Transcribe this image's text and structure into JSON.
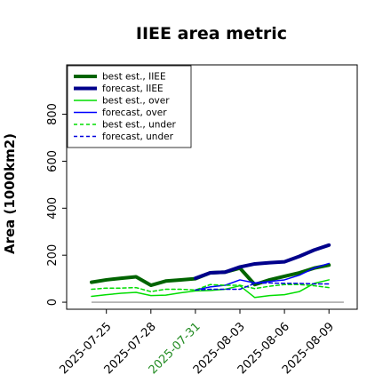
{
  "chart_data": {
    "type": "line",
    "title": "IIEE area metric",
    "xlabel": "",
    "ylabel": "Area (1000km2)",
    "ylim": [
      -30,
      1010
    ],
    "grid": false,
    "legend_position": "top-left",
    "x_tick_labels": [
      "2025-07-25",
      "2025-07-28",
      "2025-07-31",
      "2025-08-03",
      "2025-08-06",
      "2025-08-09"
    ],
    "highlighted_tick": "2025-07-31",
    "highlight_color": "#228b22",
    "y_ticks": [
      0,
      200,
      400,
      600,
      800
    ],
    "x_dates": [
      "2025-07-24",
      "2025-07-25",
      "2025-07-26",
      "2025-07-27",
      "2025-07-28",
      "2025-07-29",
      "2025-07-30",
      "2025-07-31",
      "2025-08-01",
      "2025-08-02",
      "2025-08-03",
      "2025-08-04",
      "2025-08-05",
      "2025-08-06",
      "2025-08-07",
      "2025-08-08",
      "2025-08-09",
      "2025-08-10"
    ],
    "series": [
      {
        "name": "best est., IIEE",
        "color": "#006400",
        "dash": "solid",
        "width": 4,
        "values": [
          85,
          95,
          102,
          108,
          72,
          90,
          95,
          100,
          125,
          128,
          145,
          75,
          95,
          110,
          125,
          145,
          158,
          null
        ]
      },
      {
        "name": "forecast, IIEE",
        "color": "#00008b",
        "dash": "solid",
        "width": 4,
        "values": [
          null,
          null,
          null,
          null,
          null,
          null,
          null,
          102,
          125,
          128,
          150,
          163,
          168,
          172,
          195,
          222,
          243,
          null
        ]
      },
      {
        "name": "best est., over",
        "color": "#00dd00",
        "dash": "solid",
        "width": 1.5,
        "values": [
          25,
          32,
          38,
          42,
          28,
          30,
          40,
          48,
          50,
          55,
          70,
          20,
          28,
          32,
          45,
          80,
          95,
          null
        ]
      },
      {
        "name": "forecast, over",
        "color": "#0000ff",
        "dash": "solid",
        "width": 1.5,
        "values": [
          null,
          null,
          null,
          null,
          null,
          null,
          null,
          52,
          65,
          72,
          95,
          82,
          88,
          95,
          115,
          145,
          165,
          null
        ]
      },
      {
        "name": "best est., under",
        "color": "#00dd00",
        "dash": "dashed",
        "width": 1.5,
        "values": [
          55,
          60,
          60,
          62,
          45,
          55,
          55,
          52,
          75,
          72,
          72,
          58,
          68,
          75,
          75,
          70,
          62,
          null
        ]
      },
      {
        "name": "forecast, under",
        "color": "#0000dd",
        "dash": "dashed",
        "width": 1.5,
        "values": [
          null,
          null,
          null,
          null,
          null,
          null,
          null,
          52,
          55,
          55,
          55,
          80,
          82,
          80,
          80,
          78,
          78,
          null
        ]
      }
    ],
    "baseline_value": 0,
    "baseline_color": "#888888"
  }
}
